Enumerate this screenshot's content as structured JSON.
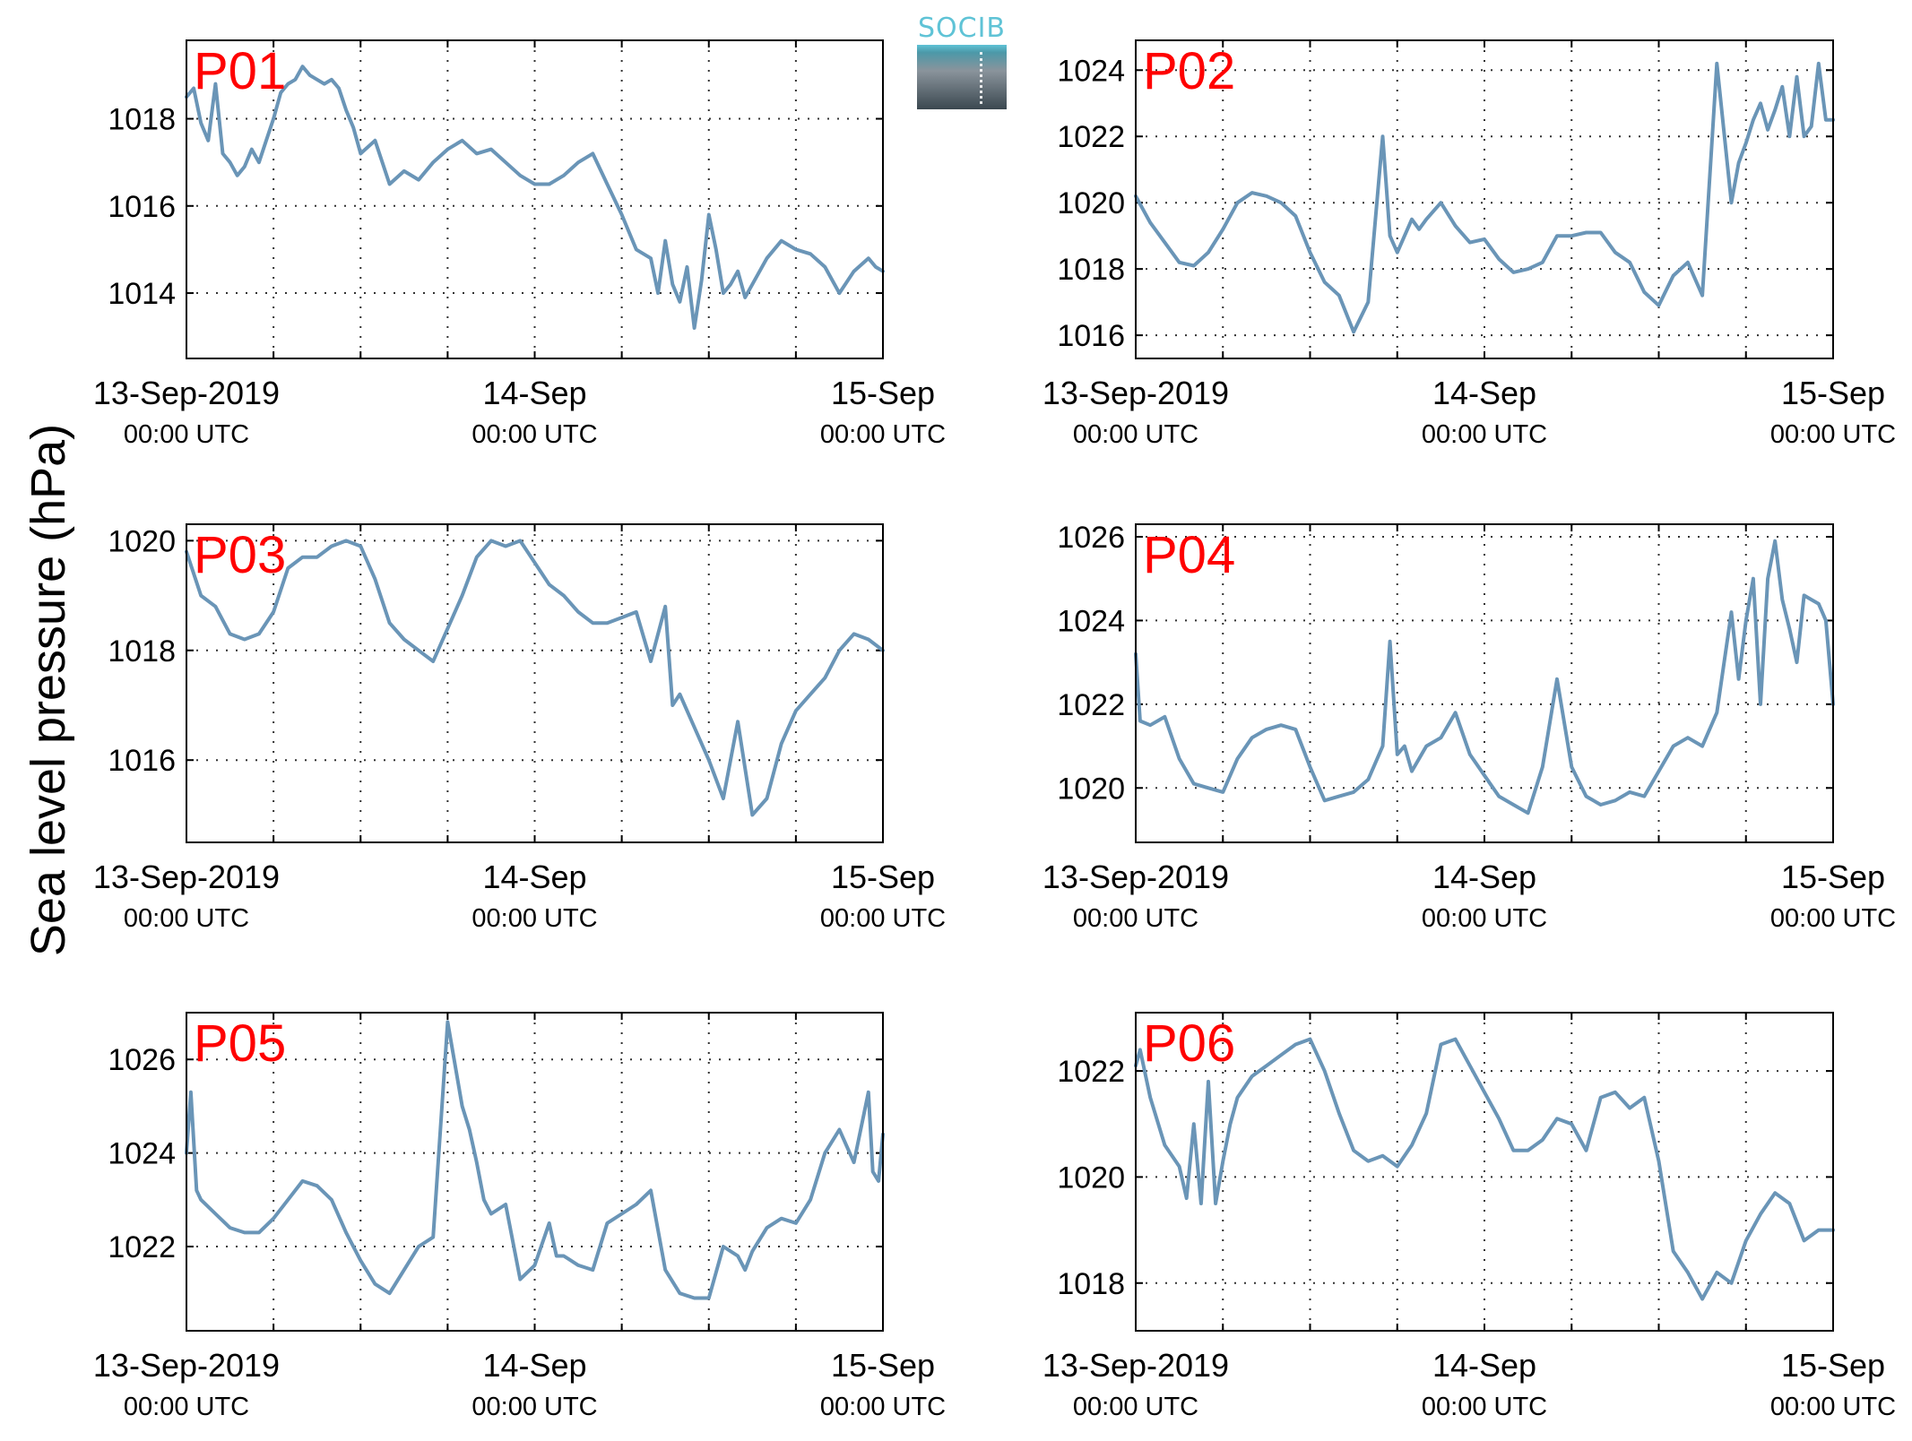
{
  "figure": {
    "ylabel": "Sea level pressure (hPa)",
    "logo_text": "SOCIB",
    "colors": {
      "line": "#6a95b7",
      "panel_label": "#ff0000",
      "axis": "#000000",
      "grid": "#333333",
      "logo": "#5fc3d6"
    }
  },
  "chart_data": [
    {
      "type": "line",
      "panel_label": "P01",
      "x_ticks": [
        {
          "line1": "13-Sep-2019",
          "line2": "00:00 UTC"
        },
        {
          "line1": "14-Sep",
          "line2": "00:00 UTC"
        },
        {
          "line1": "15-Sep",
          "line2": "00:00 UTC"
        }
      ],
      "x_range_hours": [
        0,
        48
      ],
      "ylim": [
        1012.5,
        1019.8
      ],
      "yticks": [
        1014,
        1016,
        1018
      ],
      "x": [
        0,
        0.5,
        1,
        1.5,
        2,
        2.5,
        3,
        3.5,
        4,
        4.5,
        5,
        5.5,
        6,
        6.5,
        7,
        7.5,
        8,
        8.5,
        9,
        9.5,
        10,
        10.5,
        11,
        11.5,
        12,
        13,
        14,
        15,
        16,
        17,
        18,
        19,
        20,
        21,
        22,
        23,
        24,
        25,
        26,
        27,
        28,
        29,
        30,
        31,
        32,
        32.5,
        33,
        33.5,
        34,
        34.5,
        35,
        35.5,
        36,
        36.5,
        37,
        37.5,
        38,
        38.5,
        39,
        40,
        41,
        42,
        43,
        44,
        45,
        46,
        47,
        47.5,
        48
      ],
      "y": [
        1018.5,
        1018.7,
        1017.9,
        1017.5,
        1018.8,
        1017.2,
        1017.0,
        1016.7,
        1016.9,
        1017.3,
        1017.0,
        1017.5,
        1018.0,
        1018.6,
        1018.8,
        1018.9,
        1019.2,
        1019.0,
        1018.9,
        1018.8,
        1018.9,
        1018.7,
        1018.2,
        1017.8,
        1017.2,
        1017.5,
        1016.5,
        1016.8,
        1016.6,
        1017.0,
        1017.3,
        1017.5,
        1017.2,
        1017.3,
        1017.0,
        1016.7,
        1016.5,
        1016.5,
        1016.7,
        1017.0,
        1017.2,
        1016.5,
        1015.8,
        1015.0,
        1014.8,
        1014.0,
        1015.2,
        1014.2,
        1013.8,
        1014.6,
        1013.2,
        1014.3,
        1015.8,
        1015.0,
        1014.0,
        1014.2,
        1014.5,
        1013.9,
        1014.2,
        1014.8,
        1015.2,
        1015.0,
        1014.9,
        1014.6,
        1014.0,
        1014.5,
        1014.8,
        1014.6,
        1014.5
      ]
    },
    {
      "type": "line",
      "panel_label": "P02",
      "x_ticks": [
        {
          "line1": "13-Sep-2019",
          "line2": "00:00 UTC"
        },
        {
          "line1": "14-Sep",
          "line2": "00:00 UTC"
        },
        {
          "line1": "15-Sep",
          "line2": "00:00 UTC"
        }
      ],
      "x_range_hours": [
        0,
        48
      ],
      "ylim": [
        1015.3,
        1024.9
      ],
      "yticks": [
        1016,
        1018,
        1020,
        1022,
        1024
      ],
      "x": [
        0,
        1,
        2,
        3,
        4,
        5,
        6,
        7,
        8,
        9,
        10,
        11,
        12,
        13,
        14,
        15,
        16,
        17,
        17.5,
        18,
        18.5,
        19,
        19.5,
        20,
        21,
        22,
        23,
        24,
        25,
        26,
        27,
        28,
        29,
        30,
        31,
        32,
        33,
        34,
        35,
        36,
        37,
        38,
        39,
        40,
        41,
        41.5,
        42,
        42.5,
        43,
        43.5,
        44,
        44.5,
        45,
        45.5,
        46,
        46.5,
        47,
        47.5,
        48
      ],
      "y": [
        1020.2,
        1019.4,
        1018.8,
        1018.2,
        1018.1,
        1018.5,
        1019.2,
        1020.0,
        1020.3,
        1020.2,
        1020.0,
        1019.6,
        1018.5,
        1017.6,
        1017.2,
        1016.1,
        1017.0,
        1022.0,
        1019.0,
        1018.5,
        1019.0,
        1019.5,
        1019.2,
        1019.5,
        1020.0,
        1019.3,
        1018.8,
        1018.9,
        1018.3,
        1017.9,
        1018.0,
        1018.2,
        1019.0,
        1019.0,
        1019.1,
        1019.1,
        1018.5,
        1018.2,
        1017.3,
        1016.9,
        1017.8,
        1018.2,
        1017.2,
        1024.2,
        1020.0,
        1021.2,
        1021.8,
        1022.5,
        1023.0,
        1022.2,
        1022.8,
        1023.5,
        1022.0,
        1023.8,
        1022.0,
        1022.3,
        1024.2,
        1022.5,
        1022.5
      ]
    },
    {
      "type": "line",
      "panel_label": "P03",
      "x_ticks": [
        {
          "line1": "13-Sep-2019",
          "line2": "00:00 UTC"
        },
        {
          "line1": "14-Sep",
          "line2": "00:00 UTC"
        },
        {
          "line1": "15-Sep",
          "line2": "00:00 UTC"
        }
      ],
      "x_range_hours": [
        0,
        48
      ],
      "ylim": [
        1014.5,
        1020.3
      ],
      "yticks": [
        1016,
        1018,
        1020
      ],
      "x": [
        0,
        1,
        2,
        3,
        4,
        5,
        6,
        7,
        8,
        9,
        10,
        11,
        12,
        13,
        14,
        15,
        16,
        17,
        18,
        19,
        20,
        21,
        22,
        23,
        24,
        25,
        26,
        27,
        28,
        29,
        30,
        31,
        32,
        33,
        33.5,
        34,
        35,
        36,
        37,
        38,
        39,
        40,
        41,
        42,
        43,
        44,
        45,
        46,
        47,
        48
      ],
      "y": [
        1019.8,
        1019.0,
        1018.8,
        1018.3,
        1018.2,
        1018.3,
        1018.7,
        1019.5,
        1019.7,
        1019.7,
        1019.9,
        1020.0,
        1019.9,
        1019.3,
        1018.5,
        1018.2,
        1018.0,
        1017.8,
        1018.4,
        1019.0,
        1019.7,
        1020.0,
        1019.9,
        1020.0,
        1019.6,
        1019.2,
        1019.0,
        1018.7,
        1018.5,
        1018.5,
        1018.6,
        1018.7,
        1017.8,
        1018.8,
        1017.0,
        1017.2,
        1016.6,
        1016.0,
        1015.3,
        1016.7,
        1015.0,
        1015.3,
        1016.3,
        1016.9,
        1017.2,
        1017.5,
        1018.0,
        1018.3,
        1018.2,
        1018.0
      ]
    },
    {
      "type": "line",
      "panel_label": "P04",
      "x_ticks": [
        {
          "line1": "13-Sep-2019",
          "line2": "00:00 UTC"
        },
        {
          "line1": "14-Sep",
          "line2": "00:00 UTC"
        },
        {
          "line1": "15-Sep",
          "line2": "00:00 UTC"
        }
      ],
      "x_range_hours": [
        0,
        48
      ],
      "ylim": [
        1018.7,
        1026.3
      ],
      "yticks": [
        1020,
        1022,
        1024,
        1026
      ],
      "x": [
        0,
        0.3,
        1,
        2,
        3,
        4,
        5,
        6,
        7,
        8,
        9,
        10,
        11,
        12,
        13,
        14,
        15,
        16,
        17,
        17.5,
        18,
        18.5,
        19,
        20,
        21,
        22,
        23,
        24,
        25,
        26,
        27,
        28,
        29,
        30,
        31,
        32,
        33,
        34,
        35,
        36,
        37,
        38,
        39,
        40,
        41,
        41.5,
        42,
        42.5,
        43,
        43.5,
        44,
        44.5,
        45,
        45.5,
        46,
        46.5,
        47,
        47.5,
        48
      ],
      "y": [
        1023.2,
        1021.6,
        1021.5,
        1021.7,
        1020.7,
        1020.1,
        1020.0,
        1019.9,
        1020.7,
        1021.2,
        1021.4,
        1021.5,
        1021.4,
        1020.5,
        1019.7,
        1019.8,
        1019.9,
        1020.2,
        1021.0,
        1023.5,
        1020.8,
        1021.0,
        1020.4,
        1021.0,
        1021.2,
        1021.8,
        1020.8,
        1020.3,
        1019.8,
        1019.6,
        1019.4,
        1020.5,
        1022.6,
        1020.5,
        1019.8,
        1019.6,
        1019.7,
        1019.9,
        1019.8,
        1020.4,
        1021.0,
        1021.2,
        1021.0,
        1021.8,
        1024.2,
        1022.6,
        1024.0,
        1025.0,
        1022.0,
        1025.0,
        1025.9,
        1024.5,
        1023.8,
        1023.0,
        1024.6,
        1024.5,
        1024.4,
        1024.0,
        1022.0
      ]
    },
    {
      "type": "line",
      "panel_label": "P05",
      "x_ticks": [
        {
          "line1": "13-Sep-2019",
          "line2": "00:00 UTC"
        },
        {
          "line1": "14-Sep",
          "line2": "00:00 UTC"
        },
        {
          "line1": "15-Sep",
          "line2": "00:00 UTC"
        }
      ],
      "x_range_hours": [
        0,
        48
      ],
      "ylim": [
        1020.2,
        1027.0
      ],
      "yticks": [
        1022,
        1024,
        1026
      ],
      "x": [
        0,
        0.3,
        0.7,
        1,
        2,
        3,
        4,
        5,
        6,
        7,
        8,
        9,
        10,
        11,
        12,
        13,
        14,
        15,
        16,
        17,
        18,
        19,
        19.5,
        20,
        20.5,
        21,
        22,
        23,
        24,
        25,
        25.5,
        26,
        27,
        28,
        29,
        30,
        31,
        32,
        33,
        34,
        35,
        36,
        37,
        38,
        38.5,
        39,
        40,
        41,
        42,
        43,
        44,
        45,
        46,
        47,
        47.3,
        47.7,
        48
      ],
      "y": [
        1024.0,
        1025.3,
        1023.2,
        1023.0,
        1022.7,
        1022.4,
        1022.3,
        1022.3,
        1022.6,
        1023.0,
        1023.4,
        1023.3,
        1023.0,
        1022.3,
        1021.7,
        1021.2,
        1021.0,
        1021.5,
        1022.0,
        1022.2,
        1026.8,
        1025.0,
        1024.5,
        1023.8,
        1023.0,
        1022.7,
        1022.9,
        1021.3,
        1021.6,
        1022.5,
        1021.8,
        1021.8,
        1021.6,
        1021.5,
        1022.5,
        1022.7,
        1022.9,
        1023.2,
        1021.5,
        1021.0,
        1020.9,
        1020.9,
        1022.0,
        1021.8,
        1021.5,
        1021.9,
        1022.4,
        1022.6,
        1022.5,
        1023.0,
        1024.0,
        1024.5,
        1023.8,
        1025.3,
        1023.6,
        1023.4,
        1024.4
      ]
    },
    {
      "type": "line",
      "panel_label": "P06",
      "x_ticks": [
        {
          "line1": "13-Sep-2019",
          "line2": "00:00 UTC"
        },
        {
          "line1": "14-Sep",
          "line2": "00:00 UTC"
        },
        {
          "line1": "15-Sep",
          "line2": "00:00 UTC"
        }
      ],
      "x_range_hours": [
        0,
        48
      ],
      "ylim": [
        1017.1,
        1023.1
      ],
      "yticks": [
        1018,
        1020,
        1022
      ],
      "x": [
        0,
        0.3,
        1,
        2,
        3,
        3.5,
        4,
        4.5,
        5,
        5.5,
        6,
        6.5,
        7,
        8,
        9,
        10,
        11,
        12,
        13,
        14,
        15,
        16,
        17,
        18,
        19,
        20,
        21,
        22,
        23,
        24,
        25,
        26,
        27,
        28,
        29,
        30,
        31,
        32,
        33,
        34,
        35,
        36,
        37,
        38,
        39,
        40,
        41,
        42,
        43,
        44,
        45,
        46,
        47,
        48
      ],
      "y": [
        1022.1,
        1022.4,
        1021.5,
        1020.6,
        1020.2,
        1019.6,
        1021.0,
        1019.5,
        1021.8,
        1019.5,
        1020.3,
        1021.0,
        1021.5,
        1021.9,
        1022.1,
        1022.3,
        1022.5,
        1022.6,
        1022.0,
        1021.2,
        1020.5,
        1020.3,
        1020.4,
        1020.2,
        1020.6,
        1021.2,
        1022.5,
        1022.6,
        1022.1,
        1021.6,
        1021.1,
        1020.5,
        1020.5,
        1020.7,
        1021.1,
        1021.0,
        1020.5,
        1021.5,
        1021.6,
        1021.3,
        1021.5,
        1020.3,
        1018.6,
        1018.2,
        1017.7,
        1018.2,
        1018.0,
        1018.8,
        1019.3,
        1019.7,
        1019.5,
        1018.8,
        1019.0,
        1019.0
      ]
    }
  ]
}
